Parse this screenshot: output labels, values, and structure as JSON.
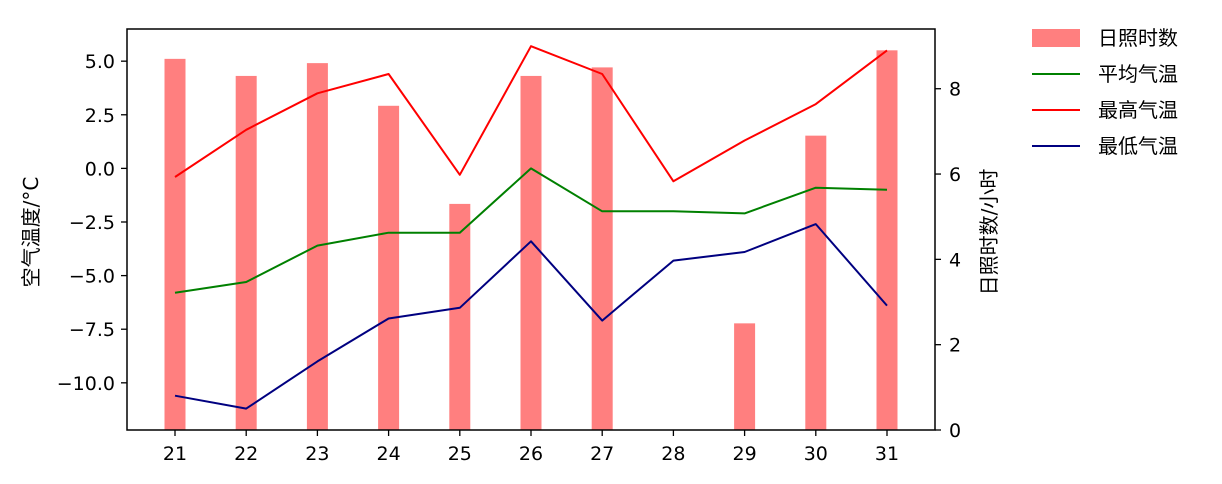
{
  "chart_data": {
    "type": "bar+line",
    "x": [
      "21",
      "22",
      "23",
      "24",
      "25",
      "26",
      "27",
      "28",
      "29",
      "30",
      "31"
    ],
    "y_left": {
      "label": "空气温度/°C",
      "lim": [
        -12.2,
        6.5
      ],
      "ticks": [
        -10.0,
        -7.5,
        -5.0,
        -2.5,
        0.0,
        2.5,
        5.0
      ],
      "tick_labels": [
        "−10.0",
        "−7.5",
        "−5.0",
        "−2.5",
        "0.0",
        "2.5",
        "5.0"
      ]
    },
    "y_right": {
      "label": "日照时数/小时",
      "lim": [
        0,
        9.4
      ],
      "ticks": [
        0,
        2,
        4,
        6,
        8
      ],
      "tick_labels": [
        "0",
        "2",
        "4",
        "6",
        "8"
      ]
    },
    "bars": {
      "name": "日照时数",
      "axis": "right",
      "color": "#ff7f7f",
      "values": [
        8.7,
        8.3,
        8.6,
        7.6,
        5.3,
        8.3,
        8.5,
        0,
        2.5,
        6.9,
        8.9
      ]
    },
    "series": [
      {
        "name": "平均气温",
        "axis": "left",
        "color": "#008000",
        "values": [
          -5.8,
          -5.3,
          -3.6,
          -3.0,
          -3.0,
          0.0,
          -2.0,
          -2.0,
          -2.1,
          -0.9,
          -1.0
        ]
      },
      {
        "name": "最高气温",
        "axis": "left",
        "color": "#ff0000",
        "values": [
          -0.4,
          1.8,
          3.5,
          4.4,
          -0.3,
          5.7,
          4.4,
          -0.6,
          1.3,
          3.0,
          5.5
        ]
      },
      {
        "name": "最低气温",
        "axis": "left",
        "color": "#000080",
        "values": [
          -10.6,
          -11.2,
          -9.0,
          -7.0,
          -6.5,
          -3.4,
          -7.1,
          -4.3,
          -3.9,
          -2.6,
          -6.4
        ]
      }
    ],
    "legend": {
      "position": "outside-top-right",
      "items": [
        {
          "label": "日照时数",
          "kind": "bar",
          "color": "#ff7f7f"
        },
        {
          "label": "平均气温",
          "kind": "line",
          "color": "#008000"
        },
        {
          "label": "最高气温",
          "kind": "line",
          "color": "#ff0000"
        },
        {
          "label": "最低气温",
          "kind": "line",
          "color": "#000080"
        }
      ]
    },
    "grid": false
  }
}
